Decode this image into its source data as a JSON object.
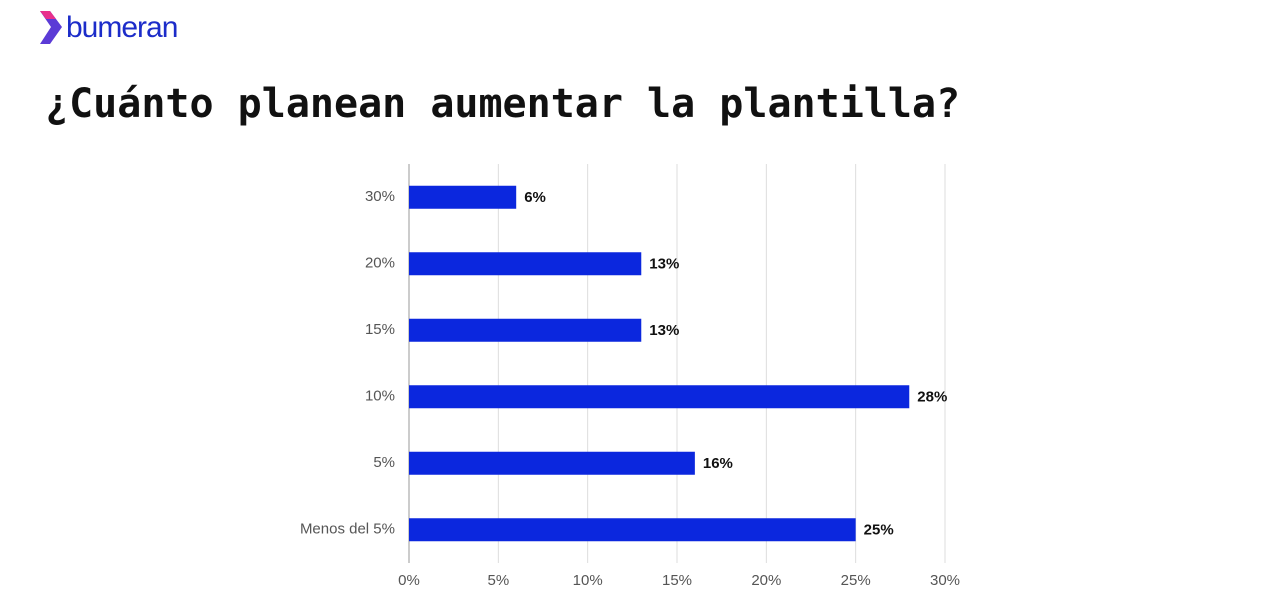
{
  "logo": "bumeran",
  "chart_data": {
    "type": "hbar",
    "title": "¿Cuánto planean aumentar la plantilla?",
    "categories": [
      "30%",
      "20%",
      "15%",
      "10%",
      "5%",
      "Menos del 5%"
    ],
    "values": [
      6,
      13,
      13,
      28,
      16,
      25
    ],
    "value_labels": [
      "6%",
      "13%",
      "13%",
      "28%",
      "16%",
      "25%"
    ],
    "color": "#0b27de",
    "xlim": [
      0,
      30
    ],
    "xticks": [
      {
        "value": 0,
        "label": "0%"
      },
      {
        "value": 5,
        "label": "5%"
      },
      {
        "value": 10,
        "label": "10%"
      },
      {
        "value": 15,
        "label": "15%"
      },
      {
        "value": 20,
        "label": "20%"
      },
      {
        "value": 25,
        "label": "25%"
      },
      {
        "value": 30,
        "label": "30%"
      }
    ],
    "grid": true
  }
}
